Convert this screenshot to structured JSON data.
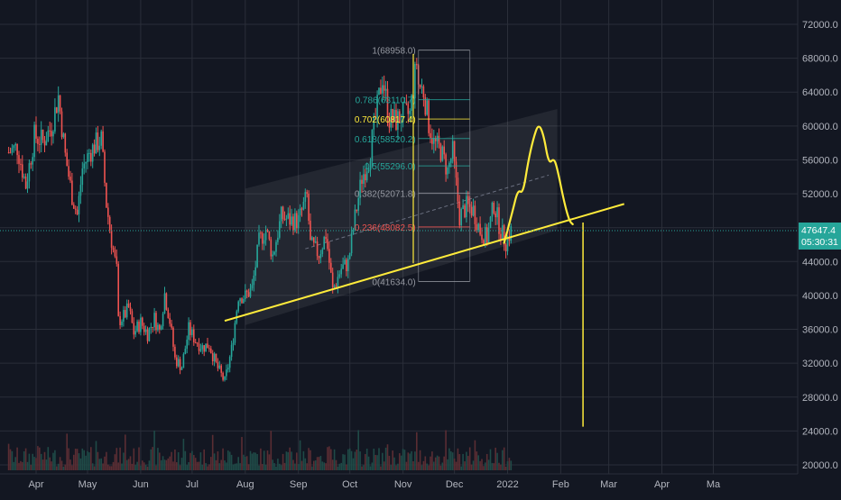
{
  "colors": {
    "background": "#131722",
    "grid": "#2a2e39",
    "axis_text": "#b2b5be",
    "up": "#26a69a",
    "down": "#ef5350",
    "volume_up": "#1f4a47",
    "volume_down": "#5a2d33",
    "drawing": "#ffeb3b",
    "channel_fill": "#2a2e39",
    "price_label_bg": "#26a69a"
  },
  "chart_data": {
    "type": "candlestick",
    "x_ticks": [
      "Apr",
      "May",
      "Jun",
      "Jul",
      "Aug",
      "Sep",
      "Oct",
      "Nov",
      "Dec",
      "2022",
      "Feb",
      "Mar",
      "Apr",
      "Ma"
    ],
    "y_ticks": [
      "72000.0",
      "68000.0",
      "64000.0",
      "60000.0",
      "56000.0",
      "52000.0",
      "48000.0",
      "44000.0",
      "40000.0",
      "36000.0",
      "32000.0",
      "28000.0",
      "24000.0",
      "20000.0"
    ],
    "ylim": [
      20000,
      73000
    ],
    "current_price": "47647.4",
    "countdown": "05:30:31",
    "fib_levels": [
      {
        "label": "1(68958.0)",
        "value": 68958.0
      },
      {
        "label": "0.786(63110.7)",
        "value": 63110.7
      },
      {
        "label": "0.702(60817.4)",
        "value": 60817.4
      },
      {
        "label": "0.618(58520.2)",
        "value": 58520.2
      },
      {
        "label": "0.5(55296.0)",
        "value": 55296.0
      },
      {
        "label": "0.382(52071.8)",
        "value": 52071.8
      },
      {
        "label": "0.236(48082.5)",
        "value": 48082.5
      },
      {
        "label": "0(41634.0)",
        "value": 41634.0
      }
    ],
    "trendline": {
      "start": [
        "2021-07-20",
        37000
      ],
      "end": [
        "2022-03-10",
        50800
      ]
    },
    "projected_drop": {
      "date": "2022-02-14",
      "from": 48600,
      "to": 24500
    },
    "channel": {
      "upper": [
        [
          "2021-08-01",
          52600
        ],
        [
          "2022-01-30",
          62000
        ]
      ],
      "lower": [
        [
          "2021-08-01",
          36500
        ],
        [
          "2022-01-30",
          47700
        ]
      ]
    },
    "forecast_path": [
      [
        "2021-12-30",
        46200
      ],
      [
        "2022-01-04",
        50000
      ],
      [
        "2022-01-07",
        52500
      ],
      [
        "2022-01-10",
        52000
      ],
      [
        "2022-01-13",
        55800
      ],
      [
        "2022-01-16",
        58500
      ],
      [
        "2022-01-19",
        60300
      ],
      [
        "2022-01-22",
        59000
      ],
      [
        "2022-01-25",
        55500
      ],
      [
        "2022-01-28",
        56200
      ],
      [
        "2022-01-30",
        55000
      ],
      [
        "2022-02-03",
        51000
      ],
      [
        "2022-02-06",
        48800
      ],
      [
        "2022-02-08",
        48400
      ]
    ],
    "daily_close": [
      [
        "2021-03-16",
        56900
      ],
      [
        "2021-03-21",
        57500
      ],
      [
        "2021-03-26",
        53000
      ],
      [
        "2021-03-31",
        58800
      ],
      [
        "2021-04-05",
        58200
      ],
      [
        "2021-04-10",
        59900
      ],
      [
        "2021-04-14",
        63500
      ],
      [
        "2021-04-18",
        56500
      ],
      [
        "2021-04-22",
        51800
      ],
      [
        "2021-04-25",
        49500
      ],
      [
        "2021-04-28",
        55000
      ],
      [
        "2021-05-02",
        56800
      ],
      [
        "2021-05-06",
        57900
      ],
      [
        "2021-05-09",
        58400
      ],
      [
        "2021-05-12",
        50800
      ],
      [
        "2021-05-15",
        46500
      ],
      [
        "2021-05-18",
        42900
      ],
      [
        "2021-05-19",
        37000
      ],
      [
        "2021-05-22",
        37500
      ],
      [
        "2021-05-25",
        38500
      ],
      [
        "2021-05-28",
        35600
      ],
      [
        "2021-06-01",
        36800
      ],
      [
        "2021-06-05",
        35500
      ],
      [
        "2021-06-09",
        37300
      ],
      [
        "2021-06-12",
        35800
      ],
      [
        "2021-06-15",
        40200
      ],
      [
        "2021-06-18",
        37000
      ],
      [
        "2021-06-21",
        32500
      ],
      [
        "2021-06-25",
        31600
      ],
      [
        "2021-06-29",
        36000
      ],
      [
        "2021-07-03",
        34700
      ],
      [
        "2021-07-07",
        33900
      ],
      [
        "2021-07-11",
        34200
      ],
      [
        "2021-07-15",
        31800
      ],
      [
        "2021-07-20",
        29800
      ],
      [
        "2021-07-24",
        33600
      ],
      [
        "2021-07-28",
        40000
      ],
      [
        "2021-08-01",
        39900
      ],
      [
        "2021-08-05",
        40800
      ],
      [
        "2021-08-09",
        46300
      ],
      [
        "2021-08-13",
        47800
      ],
      [
        "2021-08-17",
        44700
      ],
      [
        "2021-08-22",
        49300
      ],
      [
        "2021-08-27",
        48900
      ],
      [
        "2021-09-01",
        48800
      ],
      [
        "2021-09-06",
        51700
      ],
      [
        "2021-09-08",
        46000
      ],
      [
        "2021-09-13",
        44900
      ],
      [
        "2021-09-17",
        47200
      ],
      [
        "2021-09-21",
        40600
      ],
      [
        "2021-09-26",
        43200
      ],
      [
        "2021-09-30",
        43800
      ],
      [
        "2021-10-04",
        49200
      ],
      [
        "2021-10-08",
        53900
      ],
      [
        "2021-10-12",
        56000
      ],
      [
        "2021-10-16",
        60900
      ],
      [
        "2021-10-20",
        65900
      ],
      [
        "2021-10-24",
        60900
      ],
      [
        "2021-10-28",
        60600
      ],
      [
        "2021-11-01",
        61300
      ],
      [
        "2021-11-05",
        61400
      ],
      [
        "2021-11-09",
        67500
      ],
      [
        "2021-11-10",
        64900
      ],
      [
        "2021-11-13",
        64100
      ],
      [
        "2021-11-16",
        60300
      ],
      [
        "2021-11-19",
        58000
      ],
      [
        "2021-11-23",
        57100
      ],
      [
        "2021-11-27",
        54700
      ],
      [
        "2021-11-30",
        56900
      ],
      [
        "2021-12-04",
        49300
      ],
      [
        "2021-12-08",
        50500
      ],
      [
        "2021-12-12",
        50100
      ],
      [
        "2021-12-16",
        47600
      ],
      [
        "2021-12-20",
        46700
      ],
      [
        "2021-12-24",
        50800
      ],
      [
        "2021-12-28",
        47600
      ],
      [
        "2021-12-31",
        46300
      ],
      [
        "2022-01-03",
        47647
      ]
    ]
  }
}
